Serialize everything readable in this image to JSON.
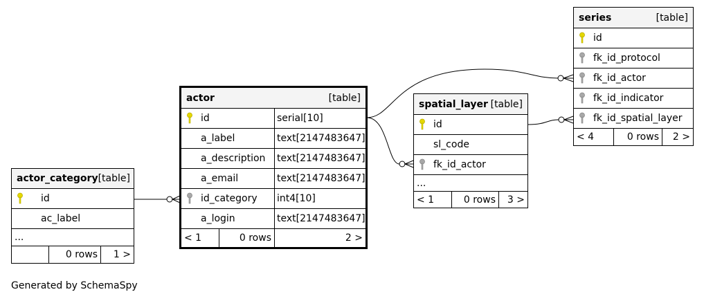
{
  "tables": {
    "actor_category": {
      "name": "actor_category",
      "kind": "[table]",
      "rows": [
        {
          "col": "id",
          "key": "primary"
        },
        {
          "col": "ac_label",
          "key": "none"
        }
      ],
      "ellipsis": "...",
      "footer": {
        "prev": "",
        "rows": "0 rows",
        "next": "1 >"
      }
    },
    "actor": {
      "name": "actor",
      "kind": "[table]",
      "rows": [
        {
          "col": "id",
          "type": "serial[10]",
          "key": "primary"
        },
        {
          "col": "a_label",
          "type": "text[2147483647]",
          "key": "none"
        },
        {
          "col": "a_description",
          "type": "text[2147483647]",
          "key": "none"
        },
        {
          "col": "a_email",
          "type": "text[2147483647]",
          "key": "none"
        },
        {
          "col": "id_category",
          "type": "int4[10]",
          "key": "foreign"
        },
        {
          "col": "a_login",
          "type": "text[2147483647]",
          "key": "none"
        }
      ],
      "footer": {
        "prev": "< 1",
        "rows": "0 rows",
        "next": "2 >"
      }
    },
    "spatial_layer": {
      "name": "spatial_layer",
      "kind": "[table]",
      "rows": [
        {
          "col": "id",
          "key": "primary"
        },
        {
          "col": "sl_code",
          "key": "none"
        },
        {
          "col": "fk_id_actor",
          "key": "foreign"
        }
      ],
      "ellipsis": "...",
      "footer": {
        "prev": "< 1",
        "rows": "0 rows",
        "next": "3 >"
      }
    },
    "series": {
      "name": "series",
      "kind": "[table]",
      "rows": [
        {
          "col": "id",
          "key": "primary"
        },
        {
          "col": "fk_id_protocol",
          "key": "foreign"
        },
        {
          "col": "fk_id_actor",
          "key": "foreign"
        },
        {
          "col": "fk_id_indicator",
          "key": "foreign"
        },
        {
          "col": "fk_id_spatial_layer",
          "key": "foreign"
        }
      ],
      "footer": {
        "prev": "< 4",
        "rows": "0 rows",
        "next": "2 >"
      }
    }
  },
  "colors": {
    "primary_key": "#e5d800",
    "foreign_key": "#a8a8a8",
    "header_bg": "#f4f4f4"
  },
  "footer_note": "Generated by SchemaSpy"
}
